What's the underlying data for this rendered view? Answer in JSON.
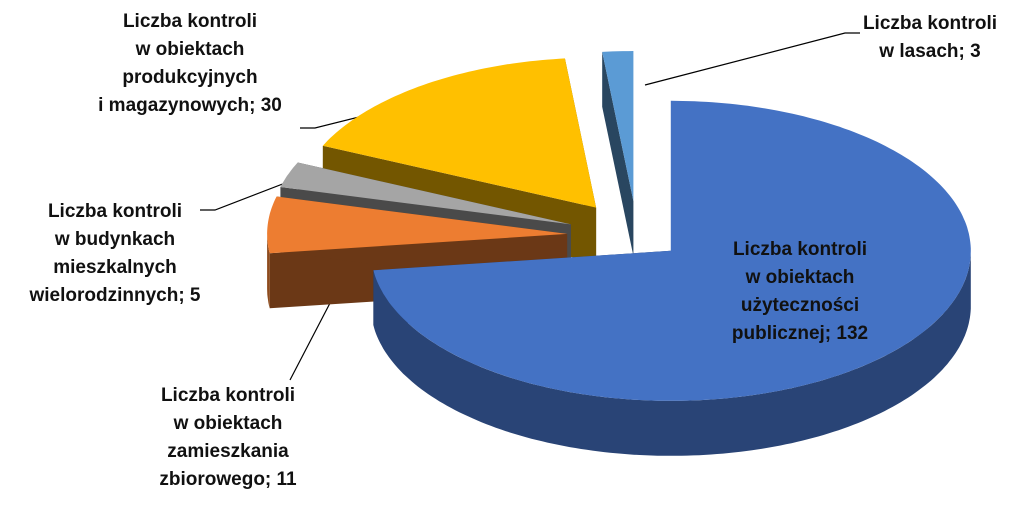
{
  "chart_data": {
    "type": "pie3d",
    "values": [
      132,
      11,
      5,
      30,
      3
    ],
    "value_labels": [
      [
        "Liczba kontroli",
        "w obiektach",
        "użyteczności",
        "publicznej; 132"
      ],
      [
        "Liczba kontroli",
        "w obiektach",
        "zamieszkania",
        "zbiorowego; 11"
      ],
      [
        "Liczba kontroli",
        "w budynkach",
        "mieszkalnych",
        "wielorodzinnych; 5"
      ],
      [
        "Liczba kontroli",
        "w obiektach",
        "produkcyjnych",
        "i magazynowych; 30"
      ],
      [
        "Liczba kontroli",
        "w lasach; 3"
      ]
    ],
    "colors": [
      "#4472c4",
      "#ed7d31",
      "#a5a5a5",
      "#ffc000",
      "#5b9bd5"
    ]
  }
}
